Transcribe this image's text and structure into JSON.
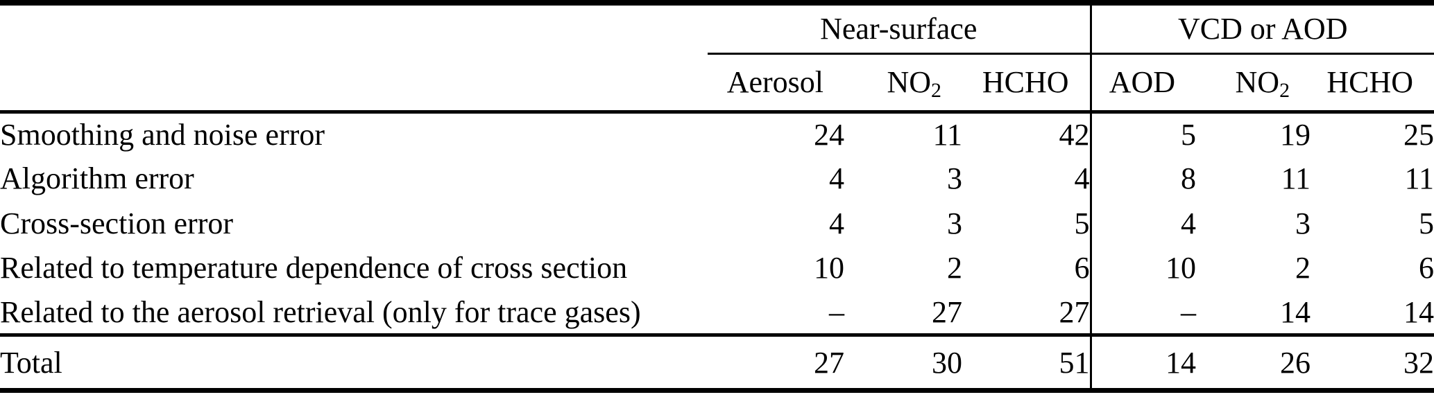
{
  "table": {
    "group_headers": [
      {
        "label": "Near-surface"
      },
      {
        "label": "VCD or AOD"
      }
    ],
    "column_headers": [
      {
        "text": "Aerosol",
        "sub": ""
      },
      {
        "text": "NO",
        "sub": "2"
      },
      {
        "text": "HCHO",
        "sub": ""
      },
      {
        "text": "AOD",
        "sub": ""
      },
      {
        "text": "NO",
        "sub": "2"
      },
      {
        "text": "HCHO",
        "sub": ""
      }
    ],
    "rows": [
      {
        "label": "Smoothing and noise error",
        "values": [
          "24",
          "11",
          "42",
          "5",
          "19",
          "25"
        ]
      },
      {
        "label": "Algorithm error",
        "values": [
          "4",
          "3",
          "4",
          "8",
          "11",
          "11"
        ]
      },
      {
        "label": "Cross-section error",
        "values": [
          "4",
          "3",
          "5",
          "4",
          "3",
          "5"
        ]
      },
      {
        "label": "Related to temperature dependence of cross section",
        "values": [
          "10",
          "2",
          "6",
          "10",
          "2",
          "6"
        ]
      },
      {
        "label": "Related to the aerosol retrieval (only for trace gases)",
        "values": [
          "–",
          "27",
          "27",
          "–",
          "14",
          "14"
        ]
      }
    ],
    "total": {
      "label": "Total",
      "values": [
        "27",
        "30",
        "51",
        "14",
        "26",
        "32"
      ]
    }
  },
  "colors": {
    "text": "#000000",
    "background": "#ffffff",
    "rule": "#000000"
  }
}
